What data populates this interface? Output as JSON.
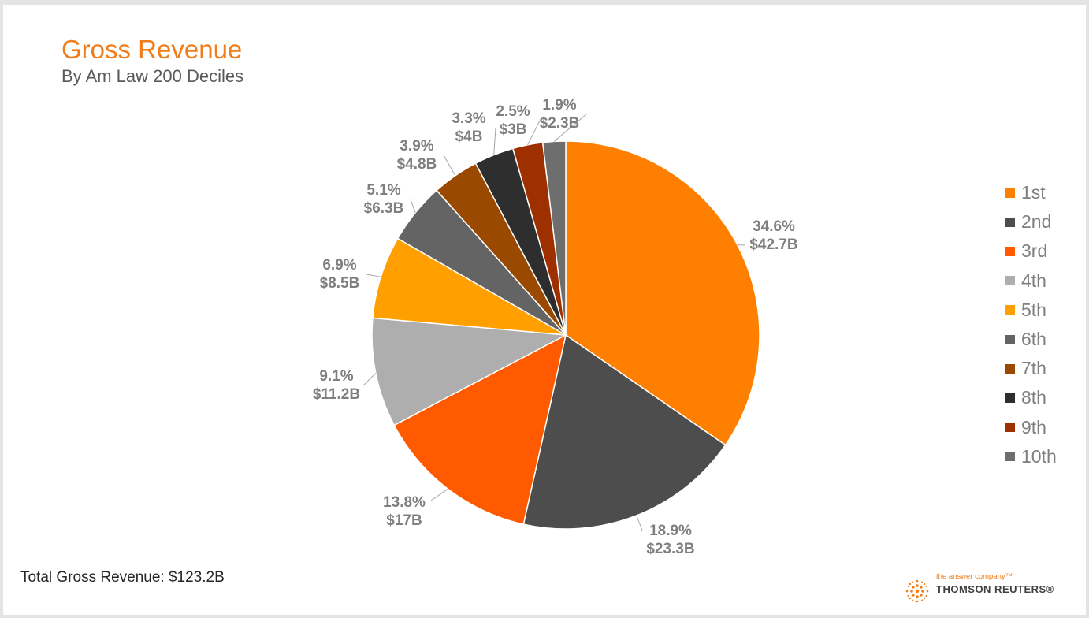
{
  "header": {
    "title": "Gross Revenue",
    "subtitle": "By Am Law 200 Deciles"
  },
  "footer": {
    "total_label": "Total Gross Revenue: $123.2B"
  },
  "logo": {
    "tagline": "the answer company™",
    "brand": "THOMSON REUTERS®"
  },
  "chart_data": {
    "type": "pie",
    "title": "Gross Revenue",
    "subtitle": "By Am Law 200 Deciles",
    "start_angle_deg": 0,
    "direction": "clockwise",
    "legend_position": "right",
    "slices": [
      {
        "label": "1st",
        "percent": 34.6,
        "value_label": "$42.7B",
        "value": 42.7,
        "color": "#ff7f00"
      },
      {
        "label": "2nd",
        "percent": 18.9,
        "value_label": "$23.3B",
        "value": 23.3,
        "color": "#4d4d4d"
      },
      {
        "label": "3rd",
        "percent": 13.8,
        "value_label": "$17B",
        "value": 17.0,
        "color": "#ff5a00"
      },
      {
        "label": "4th",
        "percent": 9.1,
        "value_label": "$11.2B",
        "value": 11.2,
        "color": "#aeaeae"
      },
      {
        "label": "5th",
        "percent": 6.9,
        "value_label": "$8.5B",
        "value": 8.5,
        "color": "#ffa000"
      },
      {
        "label": "6th",
        "percent": 5.1,
        "value_label": "$6.3B",
        "value": 6.3,
        "color": "#646464"
      },
      {
        "label": "7th",
        "percent": 3.9,
        "value_label": "$4.8B",
        "value": 4.8,
        "color": "#9a4a00"
      },
      {
        "label": "8th",
        "percent": 3.3,
        "value_label": "$4B",
        "value": 4.0,
        "color": "#2e2e2e"
      },
      {
        "label": "9th",
        "percent": 2.5,
        "value_label": "$3B",
        "value": 3.0,
        "color": "#9e3000"
      },
      {
        "label": "10th",
        "percent": 1.9,
        "value_label": "$2.3B",
        "value": 2.3,
        "color": "#6e6e6e"
      }
    ]
  }
}
